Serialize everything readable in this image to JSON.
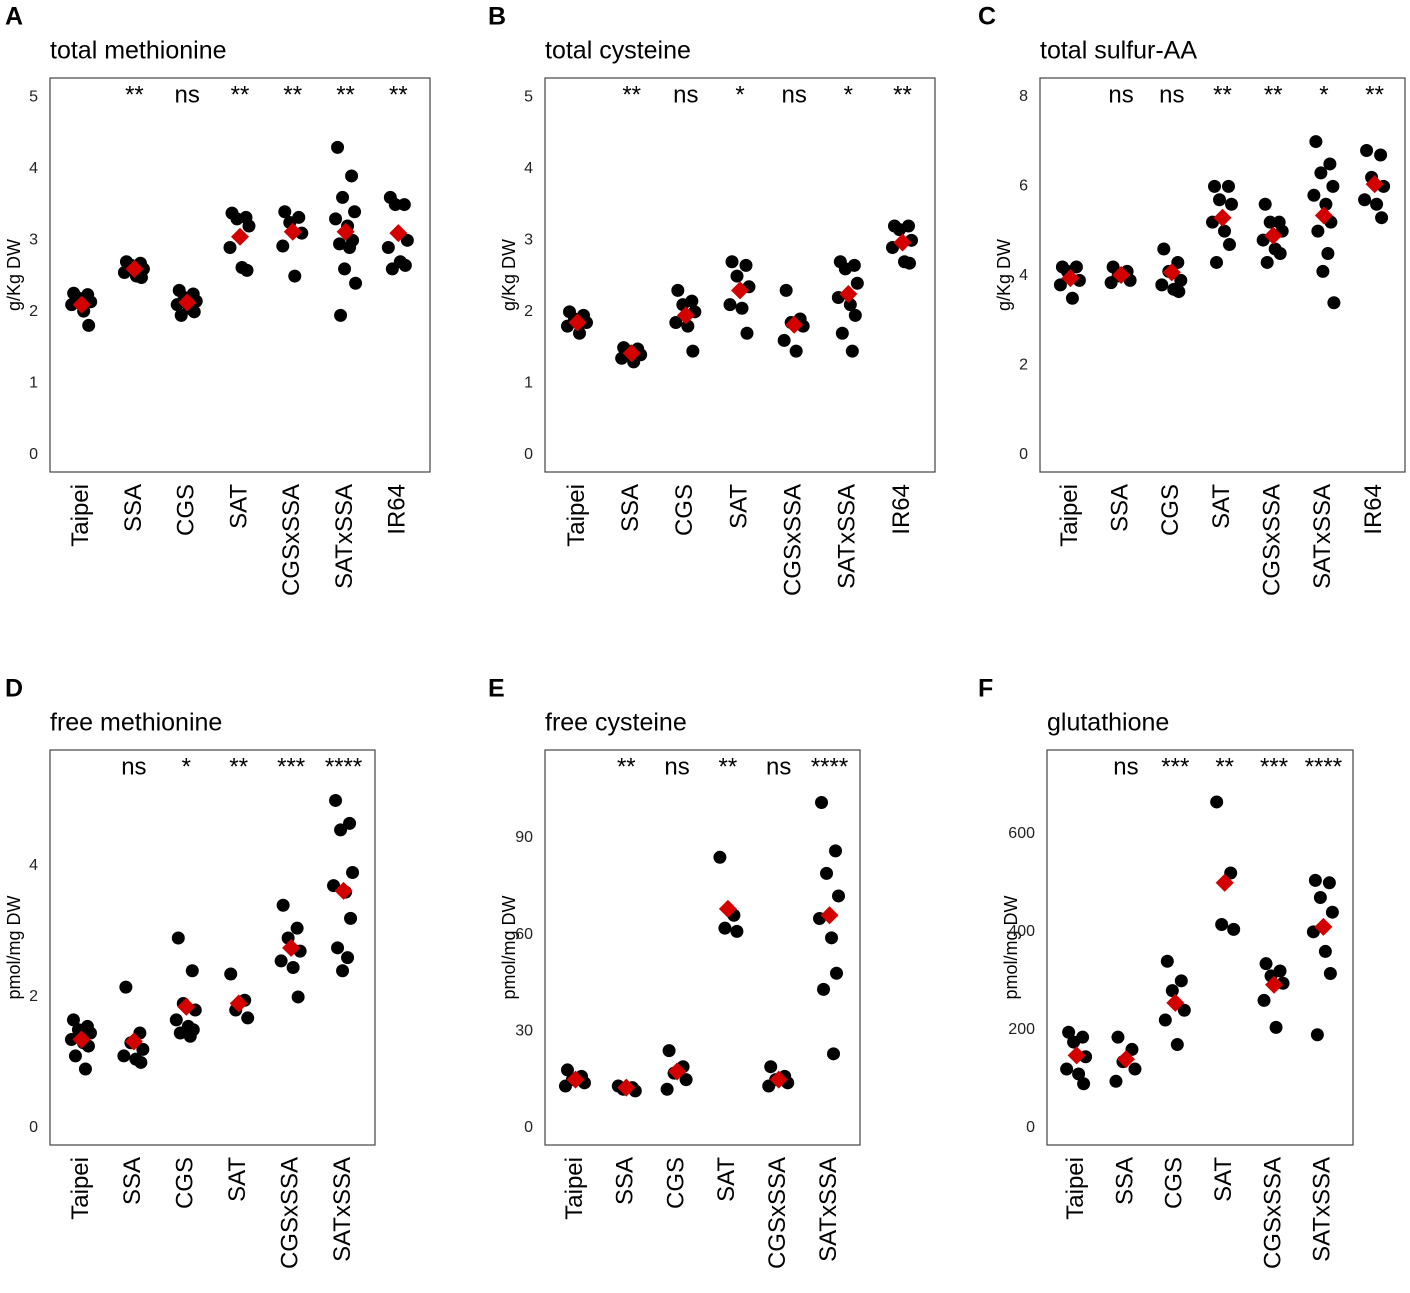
{
  "chart_data": [
    {
      "type": "strip",
      "panel": "A",
      "title": "total methionine",
      "ylabel": "g/Kg DW",
      "categories": [
        "Taipei",
        "SSA",
        "CGS",
        "SAT",
        "CGSxSSA",
        "SATxSSA",
        "IR64"
      ],
      "points": [
        [
          2.26,
          2.24,
          2.19,
          2.14,
          2.1,
          2.01,
          1.81
        ],
        [
          2.7,
          2.68,
          2.65,
          2.6,
          2.55,
          2.5,
          2.48
        ],
        [
          2.3,
          2.25,
          2.2,
          2.15,
          2.1,
          2.05,
          2.0,
          1.95
        ],
        [
          3.38,
          3.32,
          3.3,
          3.2,
          2.9,
          2.62,
          2.58
        ],
        [
          3.4,
          3.32,
          3.25,
          3.1,
          2.92,
          2.5
        ],
        [
          4.3,
          3.9,
          3.6,
          3.4,
          3.3,
          3.2,
          3.0,
          2.95,
          2.9,
          2.6,
          2.4,
          1.95
        ],
        [
          3.6,
          3.5,
          3.5,
          3.0,
          2.9,
          2.7,
          2.65,
          2.6
        ]
      ],
      "means": [
        2.1,
        2.6,
        2.13,
        3.05,
        3.12,
        3.12,
        3.1
      ],
      "annotations": [
        null,
        "**",
        "ns",
        "**",
        "**",
        "**",
        "**"
      ],
      "ylim": [
        -0.24,
        5.27
      ],
      "yticks": [
        0,
        1,
        2,
        3,
        4,
        5
      ],
      "point_color": "#000000",
      "mean_color": "#d40000"
    },
    {
      "type": "strip",
      "panel": "B",
      "title": "total cysteine",
      "ylabel": "g/Kg DW",
      "categories": [
        "Taipei",
        "SSA",
        "CGS",
        "SAT",
        "CGSxSSA",
        "SATxSSA",
        "IR64"
      ],
      "points": [
        [
          2.0,
          1.95,
          1.9,
          1.85,
          1.8,
          1.7
        ],
        [
          1.5,
          1.48,
          1.45,
          1.4,
          1.35,
          1.3
        ],
        [
          2.3,
          2.15,
          2.1,
          2.0,
          1.85,
          1.8,
          1.45
        ],
        [
          2.7,
          2.65,
          2.5,
          2.35,
          2.1,
          2.05,
          1.7
        ],
        [
          2.3,
          1.9,
          1.85,
          1.8,
          1.6,
          1.45
        ],
        [
          2.7,
          2.65,
          2.6,
          2.4,
          2.2,
          2.1,
          1.95,
          1.7,
          1.45
        ],
        [
          3.2,
          3.2,
          3.15,
          3.0,
          2.9,
          2.7,
          2.68
        ]
      ],
      "means": [
        1.85,
        1.42,
        1.95,
        2.3,
        1.82,
        2.25,
        2.97
      ],
      "annotations": [
        null,
        "**",
        "ns",
        "*",
        "ns",
        "*",
        "**"
      ],
      "ylim": [
        -0.24,
        5.27
      ],
      "yticks": [
        0,
        1,
        2,
        3,
        4,
        5
      ],
      "point_color": "#000000",
      "mean_color": "#d40000"
    },
    {
      "type": "strip",
      "panel": "C",
      "title": "total sulfur-AA",
      "ylabel": "g/Kg DW",
      "categories": [
        "Taipei",
        "SSA",
        "CGS",
        "SAT",
        "CGSxSSA",
        "SATxSSA",
        "IR64"
      ],
      "points": [
        [
          4.2,
          4.2,
          4.1,
          3.9,
          3.8,
          3.5
        ],
        [
          4.2,
          4.1,
          4.0,
          3.9,
          3.85
        ],
        [
          4.6,
          4.3,
          4.1,
          3.9,
          3.8,
          3.7,
          3.65
        ],
        [
          6.0,
          6.0,
          5.7,
          5.6,
          5.2,
          5.0,
          4.7,
          4.3
        ],
        [
          5.6,
          5.2,
          5.2,
          5.0,
          4.8,
          4.6,
          4.5,
          4.3
        ],
        [
          7.0,
          6.5,
          6.3,
          6.0,
          5.8,
          5.6,
          5.2,
          5.0,
          4.5,
          4.1,
          3.4
        ],
        [
          6.8,
          6.7,
          6.2,
          6.0,
          5.7,
          5.6,
          5.3
        ]
      ],
      "means": [
        3.95,
        4.02,
        4.08,
        5.3,
        4.9,
        5.35,
        6.05
      ],
      "annotations": [
        null,
        "ns",
        "ns",
        "**",
        "**",
        "*",
        "**"
      ],
      "ylim": [
        -0.38,
        8.42
      ],
      "yticks": [
        0,
        2,
        4,
        6,
        8
      ],
      "point_color": "#000000",
      "mean_color": "#d40000"
    },
    {
      "type": "strip",
      "panel": "D",
      "title": "free methionine",
      "ylabel": "pmol/mg DW",
      "categories": [
        "Taipei",
        "SSA",
        "CGS",
        "SAT",
        "CGSxSSA",
        "SATxSSA"
      ],
      "points": [
        [
          1.65,
          1.55,
          1.5,
          1.45,
          1.35,
          1.3,
          1.25,
          1.1,
          0.9
        ],
        [
          2.15,
          1.45,
          1.3,
          1.2,
          1.1,
          1.05,
          1.0
        ],
        [
          2.9,
          2.4,
          1.9,
          1.8,
          1.65,
          1.55,
          1.5,
          1.45,
          1.4
        ],
        [
          2.35,
          1.95,
          1.8,
          1.68
        ],
        [
          3.4,
          3.05,
          2.9,
          2.7,
          2.55,
          2.45,
          2.0
        ],
        [
          5.0,
          4.65,
          4.55,
          3.9,
          3.7,
          3.6,
          3.2,
          2.75,
          2.6,
          2.4
        ]
      ],
      "means": [
        1.35,
        1.32,
        1.85,
        1.9,
        2.75,
        3.62
      ],
      "annotations": [
        null,
        "ns",
        "*",
        "**",
        "***",
        "****"
      ],
      "ylim": [
        -0.26,
        5.77
      ],
      "yticks": [
        0,
        2,
        4
      ],
      "point_color": "#000000",
      "mean_color": "#d40000"
    },
    {
      "type": "strip",
      "panel": "E",
      "title": "free cysteine",
      "ylabel": "pmol/mg DW",
      "categories": [
        "Taipei",
        "SSA",
        "CGS",
        "SAT",
        "CGSxSSA",
        "SATxSSA"
      ],
      "points": [
        [
          18,
          16,
          15,
          14,
          13
        ],
        [
          13,
          12.5,
          12,
          11.5
        ],
        [
          24,
          19,
          17,
          15,
          12
        ],
        [
          84,
          66,
          62,
          61
        ],
        [
          19,
          16,
          15,
          14,
          13
        ],
        [
          101,
          86,
          79,
          72,
          65,
          59,
          48,
          43,
          23
        ]
      ],
      "means": [
        15,
        12.5,
        17.5,
        68,
        15,
        66
      ],
      "annotations": [
        null,
        "**",
        "ns",
        "**",
        "ns",
        "****"
      ],
      "ylim": [
        -5.3,
        117.3
      ],
      "yticks": [
        0,
        30,
        60,
        90
      ],
      "point_color": "#000000",
      "mean_color": "#d40000"
    },
    {
      "type": "strip",
      "panel": "F",
      "title": "glutathione",
      "ylabel": "pmol/mg DW",
      "categories": [
        "Taipei",
        "SSA",
        "CGS",
        "SAT",
        "CGSxSSA",
        "SATxSSA"
      ],
      "points": [
        [
          195,
          185,
          175,
          145,
          120,
          110,
          90
        ],
        [
          185,
          160,
          135,
          120,
          95
        ],
        [
          340,
          300,
          280,
          240,
          220,
          170
        ],
        [
          665,
          520,
          415,
          405
        ],
        [
          335,
          320,
          310,
          295,
          260,
          205
        ],
        [
          505,
          500,
          470,
          440,
          400,
          360,
          315,
          190
        ]
      ],
      "means": [
        148,
        140,
        255,
        500,
        292,
        410
      ],
      "annotations": [
        null,
        "ns",
        "***",
        "**",
        "***",
        "****"
      ],
      "ylim": [
        -35,
        771
      ],
      "yticks": [
        0,
        200,
        400,
        600
      ],
      "point_color": "#000000",
      "mean_color": "#d40000"
    }
  ]
}
